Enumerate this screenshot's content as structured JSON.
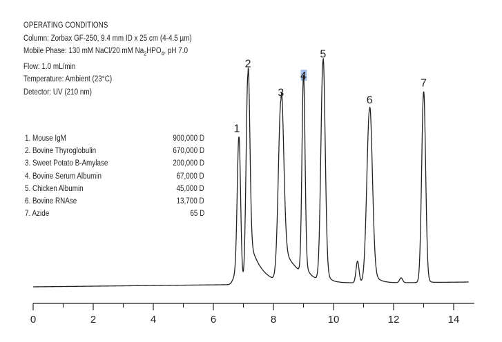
{
  "conditions": {
    "heading": "OPERATING CONDITIONS",
    "column": "Column: Zorbax GF-250, 9.4 mm ID x 25 cm (4-4.5 µm)",
    "mobile_prefix": "Mobile Phase: 130 mM NaCl/20 mM Na",
    "mobile_sub1": "2",
    "mobile_mid": "HPO",
    "mobile_sub2": "4",
    "mobile_suffix": ", pH 7.0",
    "flow": "Flow: 1.0 mL/min",
    "temperature": "Temperature: Ambient (23°C)",
    "detector": "Detector: UV (210 nm)"
  },
  "legend": [
    {
      "name": "1. Mouse IgM",
      "mw": "900,000 D"
    },
    {
      "name": "2. Bovine Thyroglobulin",
      "mw": "670,000 D"
    },
    {
      "name": "3. Sweet Potato B-Amylase",
      "mw": "200,000 D"
    },
    {
      "name": "4. Bovine Serum Albumin",
      "mw": "67,000 D"
    },
    {
      "name": "5. Chicken Albumin",
      "mw": "45,000 D"
    },
    {
      "name": "6. Bovine RNAse",
      "mw": "13,700 D"
    },
    {
      "name": "7. Azide",
      "mw": "65 D"
    }
  ],
  "chart_data": {
    "type": "line",
    "xlabel": "",
    "ylabel": "",
    "xlim": [
      0,
      14.5
    ],
    "ylim": [
      0,
      100
    ],
    "x_ticks": [
      0,
      2,
      4,
      6,
      8,
      10,
      12,
      14
    ],
    "x_tick_labels": [
      "0",
      "2",
      "4",
      "6",
      "8",
      "10",
      "12",
      "14"
    ],
    "minor_ticks": [
      1,
      3,
      5,
      7,
      9,
      11,
      13
    ],
    "grid": false,
    "line_color": "#231f20",
    "highlight_color": "#5b8fd6",
    "peaks": [
      {
        "label": "1",
        "x": 6.85,
        "y": 59
      },
      {
        "label": "2",
        "x": 7.15,
        "y": 87
      },
      {
        "label": "3",
        "x": 8.25,
        "y": 75
      },
      {
        "label": "4",
        "x": 9.0,
        "y": 82
      },
      {
        "label": "5",
        "x": 9.65,
        "y": 91
      },
      {
        "label": "6",
        "x": 11.2,
        "y": 72
      },
      {
        "label": "7",
        "x": 13.0,
        "y": 79
      }
    ],
    "minor_peaks": [
      {
        "x": 10.8,
        "y": 9
      },
      {
        "x": 12.25,
        "y": 2
      }
    ],
    "baseline_start": 0,
    "baseline_end": 2
  }
}
